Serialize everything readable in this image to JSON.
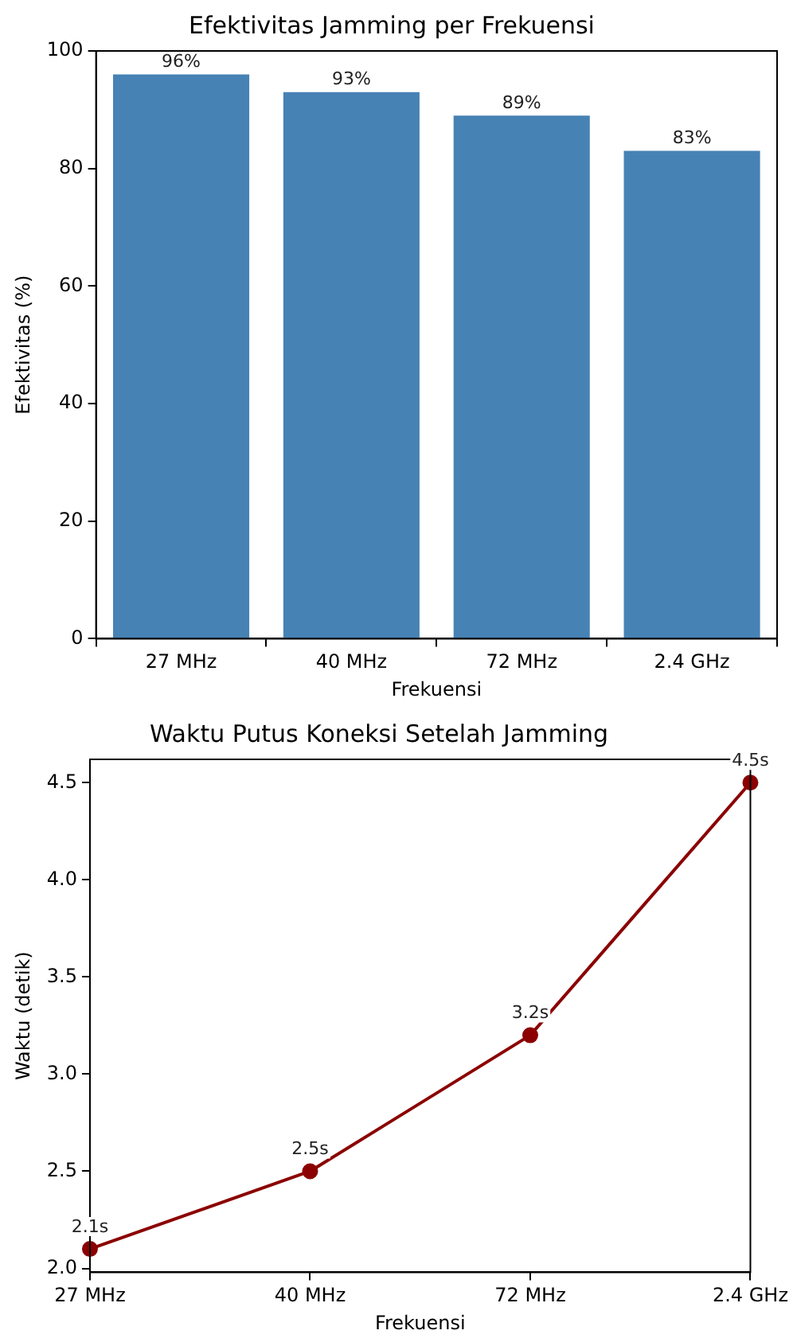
{
  "chart_data": [
    {
      "type": "bar",
      "title": "Efektivitas Jamming per Frekuensi",
      "xlabel": "Frekuensi",
      "ylabel": "Efektivitas (%)",
      "categories": [
        "27 MHz",
        "40 MHz",
        "72 MHz",
        "2.4 GHz"
      ],
      "values": [
        96,
        93,
        89,
        83
      ],
      "color": "#4682b4",
      "value_labels": [
        "96%",
        "93%",
        "89%",
        "83%"
      ],
      "ylim": [
        0,
        100
      ],
      "yticks": [
        0,
        20,
        40,
        60,
        80,
        100
      ],
      "grid": false,
      "legend": false
    },
    {
      "type": "line",
      "title": "Waktu Putus Koneksi Setelah Jamming",
      "xlabel": "Frekuensi",
      "ylabel": "Waktu (detik)",
      "categories": [
        "27 MHz",
        "40 MHz",
        "72 MHz",
        "2.4 GHz"
      ],
      "values": [
        2.1,
        2.5,
        3.2,
        4.5
      ],
      "color": "#8b0000",
      "value_labels": [
        "2.1s",
        "2.5s",
        "3.2s",
        "4.5s"
      ],
      "marker": "circle",
      "line_style": "solid",
      "ylim": [
        1.98,
        4.62
      ],
      "yticks": [
        {
          "value": 2,
          "label": "2.0"
        },
        {
          "value": 2.5,
          "label": "2.5"
        },
        {
          "value": 3,
          "label": "3.0"
        },
        {
          "value": 3.5,
          "label": "3.5"
        },
        {
          "value": 4,
          "label": "4.0"
        },
        {
          "value": 4.5,
          "label": "4.5"
        }
      ],
      "grid": false,
      "legend": false
    }
  ]
}
